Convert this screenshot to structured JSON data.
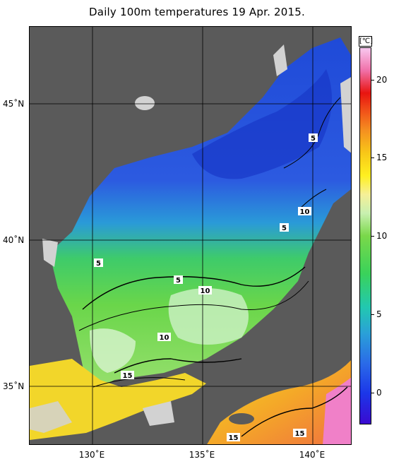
{
  "title": "Daily 100m temperatures 19 Apr. 2015.",
  "lat_labels": [
    "45˚N",
    "40˚N",
    "35˚N"
  ],
  "lon_labels": [
    "130˚E",
    "135˚E",
    "140˚E"
  ],
  "colorbar": {
    "unit": "[℃]",
    "ticks": [
      "20",
      "15",
      "10",
      "5",
      "0"
    ]
  },
  "contour_labels": [
    "5",
    "5",
    "5",
    "5",
    "10",
    "10",
    "10",
    "15",
    "15",
    "15"
  ],
  "colors": {
    "land": "#5a5a5a",
    "shelf_no_data": "#d2d2d2",
    "cold": "#2a3ad8",
    "warm": "#f5d020"
  }
}
